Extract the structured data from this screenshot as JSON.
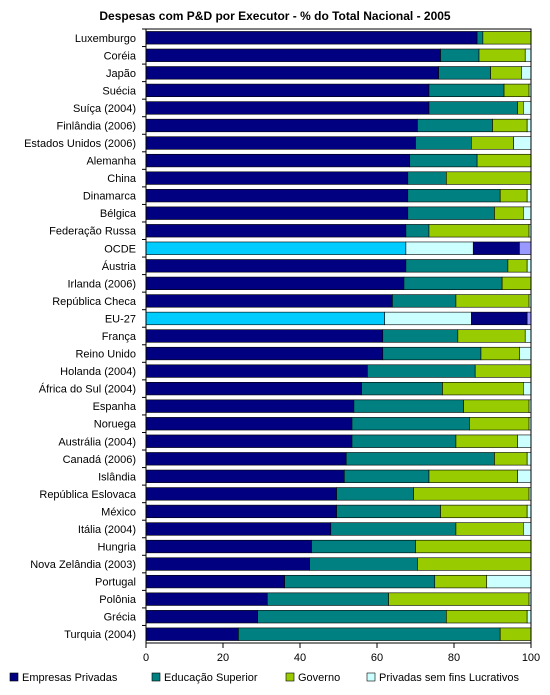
{
  "chart_data": {
    "type": "bar",
    "orientation": "horizontal",
    "stacked": true,
    "title": "Despesas com P&D por Executor - % do Total Nacional - 2005",
    "xlim": [
      0,
      100
    ],
    "x_ticks": [
      "0",
      "20",
      "40",
      "60",
      "80",
      "100"
    ],
    "grid": false,
    "legend_position": "bottom",
    "categories": [
      "Luxemburgo",
      "Coréia",
      "Japão",
      "Suécia",
      "Suíça (2004)",
      "Finlândia (2006)",
      "Estados Unidos (2006)",
      "Alemanha",
      "China",
      "Dinamarca",
      "Bélgica",
      "Federação Russa",
      "OCDE",
      "Áustria",
      "Irlanda (2006)",
      "República Checa",
      "EU-27",
      "França",
      "Reino Unido",
      "Holanda (2004)",
      "África do Sul (2004)",
      "Espanha",
      "Noruega",
      "Austrália (2004)",
      "Canadá (2006)",
      "Islândia",
      "República Eslovaca",
      "México",
      "Itália (2004)",
      "Hungria",
      "Nova Zelândia (2003)",
      "Portugal",
      "Polônia",
      "Grécia",
      "Turquia (2004)"
    ],
    "highlighted": [
      "OCDE",
      "EU-27"
    ],
    "series": [
      {
        "name": "Empresas Privadas",
        "color": "#000080",
        "highlight_color": "#00ccff",
        "values": [
          86.0,
          76.5,
          76.0,
          73.5,
          73.5,
          70.5,
          70.0,
          68.5,
          68.0,
          68.0,
          68.0,
          67.5,
          67.5,
          67.5,
          67.0,
          64.0,
          62.0,
          61.5,
          61.5,
          57.5,
          56.0,
          54.0,
          53.5,
          53.5,
          52.0,
          51.5,
          49.5,
          49.5,
          48.0,
          43.0,
          42.5,
          36.0,
          31.5,
          29.0,
          24.0
        ]
      },
      {
        "name": "Educação Superior",
        "color": "#008080",
        "highlight_color": "#ccffff",
        "values": [
          1.5,
          10.0,
          13.5,
          19.5,
          23.0,
          19.5,
          14.5,
          17.5,
          10.0,
          24.0,
          22.5,
          6.0,
          17.5,
          26.5,
          25.5,
          16.5,
          22.5,
          19.5,
          25.5,
          28.0,
          21.0,
          28.5,
          30.5,
          27.0,
          38.5,
          22.0,
          20.0,
          27.0,
          32.5,
          27.0,
          28.0,
          39.0,
          31.5,
          49.0,
          68.0
        ]
      },
      {
        "name": "Governo",
        "color": "#99cc00",
        "highlight_color": "#000080",
        "values": [
          12.5,
          12.0,
          8.0,
          6.5,
          1.5,
          9.0,
          11.0,
          14.0,
          22.0,
          7.0,
          7.5,
          26.0,
          12.0,
          5.0,
          7.5,
          19.0,
          14.5,
          17.5,
          10.0,
          14.5,
          21.0,
          17.0,
          15.5,
          16.0,
          8.5,
          23.0,
          30.0,
          22.5,
          17.5,
          30.0,
          29.5,
          13.5,
          36.5,
          21.0,
          8.0
        ]
      },
      {
        "name": "Privadas sem fins Lucrativos",
        "color": "#ccffff",
        "highlight_color": "#9999ff",
        "values": [
          0.0,
          1.5,
          2.5,
          0.5,
          2.0,
          1.0,
          4.5,
          0.0,
          0.0,
          1.0,
          2.0,
          0.5,
          3.0,
          1.0,
          0.0,
          0.5,
          1.0,
          1.5,
          3.0,
          0.0,
          2.0,
          0.5,
          0.5,
          3.5,
          1.0,
          3.5,
          0.5,
          1.0,
          2.0,
          0.0,
          0.0,
          11.5,
          0.5,
          1.0,
          0.0
        ]
      }
    ]
  }
}
